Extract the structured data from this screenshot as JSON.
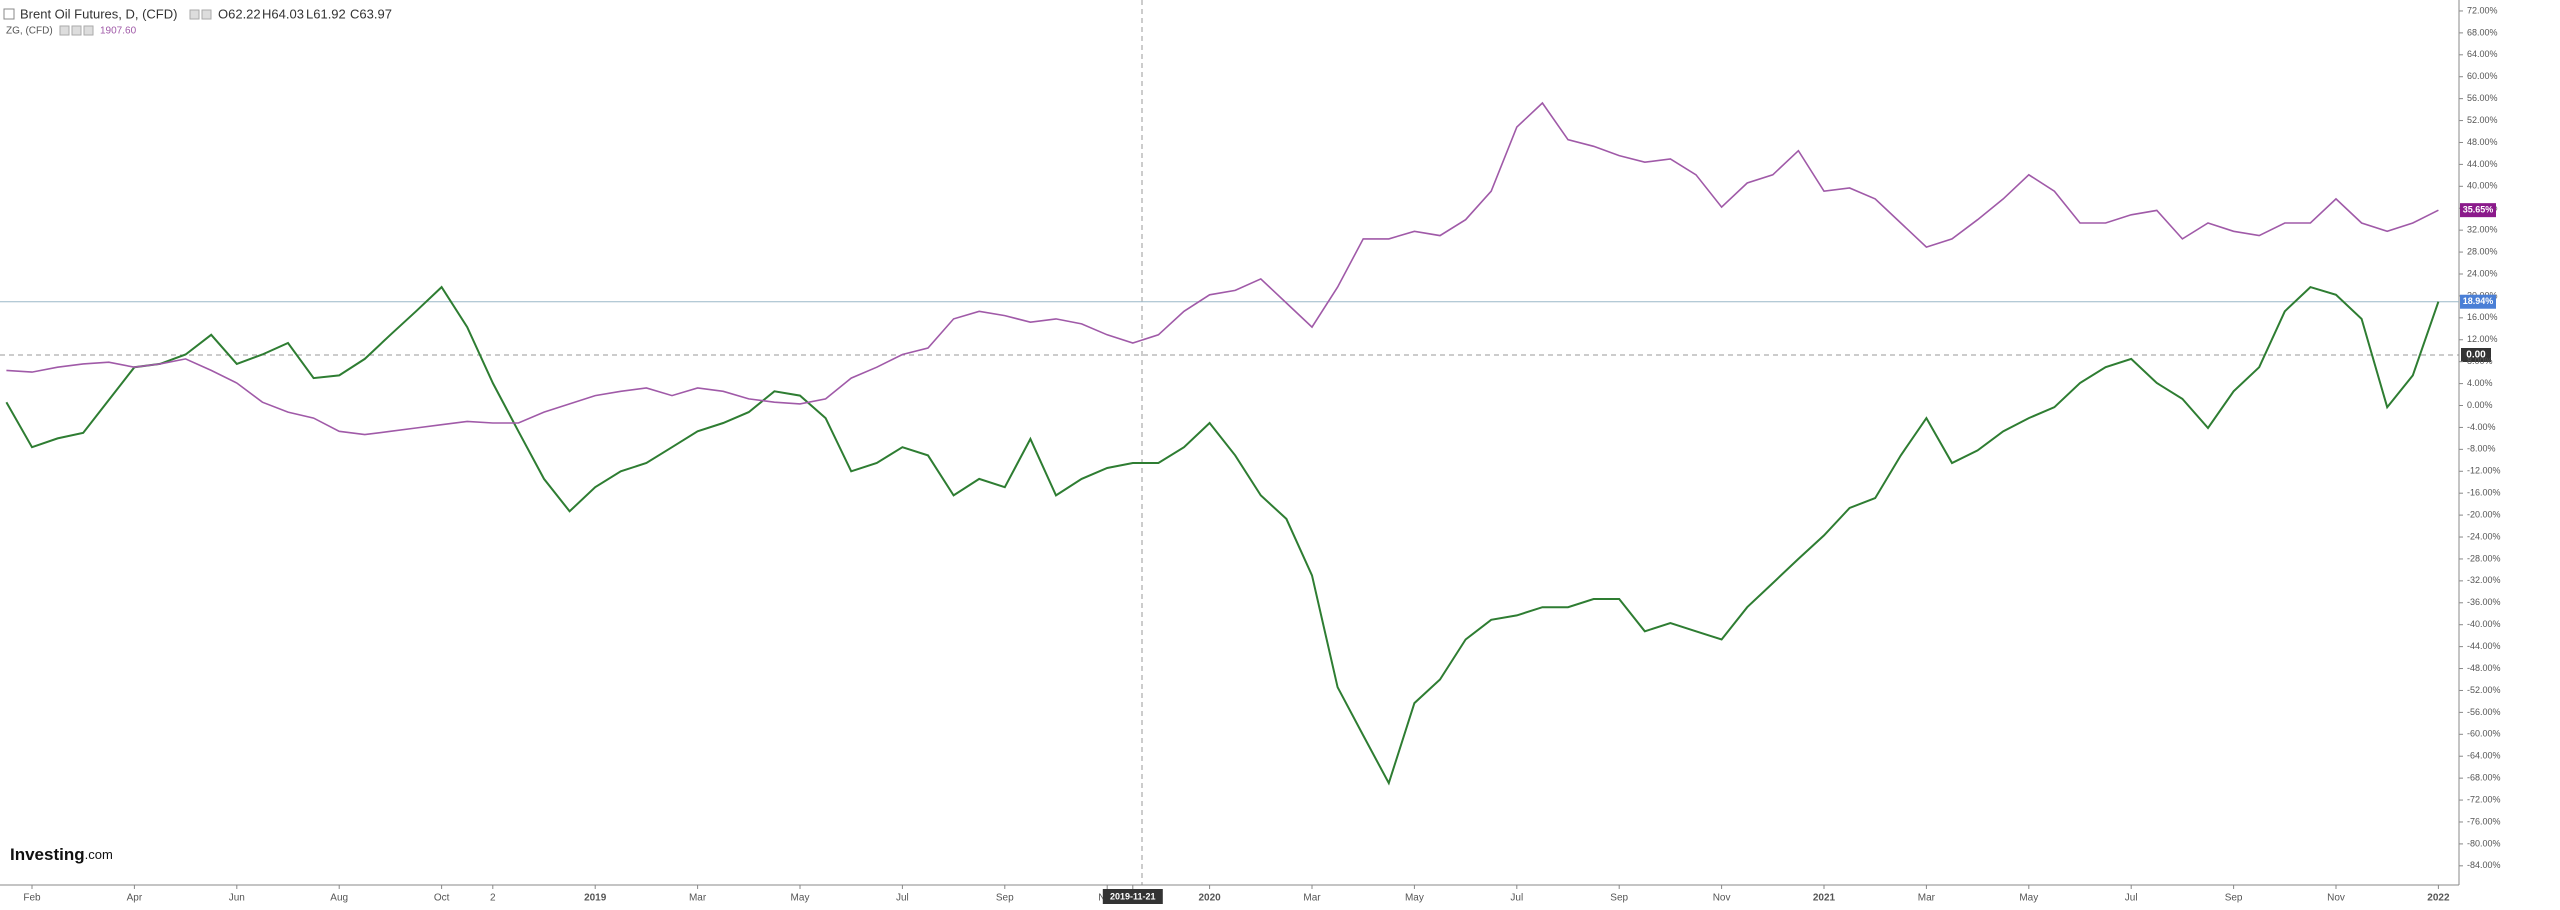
{
  "chart_data": {
    "type": "line",
    "categories": [
      null,
      "Feb",
      null,
      null,
      null,
      "Apr",
      null,
      null,
      null,
      "Jun",
      null,
      null,
      null,
      "Aug",
      null,
      null,
      null,
      "Oct",
      null,
      "2",
      null,
      null,
      null,
      "2019",
      null,
      null,
      null,
      "Mar",
      null,
      null,
      null,
      "May",
      null,
      null,
      null,
      "Jul",
      null,
      null,
      null,
      "Sep",
      null,
      null,
      null,
      "Nov",
      "2019-11-21",
      null,
      null,
      "2020",
      null,
      null,
      null,
      "Mar",
      null,
      null,
      null,
      "May",
      null,
      null,
      null,
      "Jul",
      null,
      null,
      null,
      "Sep",
      null,
      null,
      null,
      "Nov",
      null,
      null,
      null,
      "2021",
      null,
      null,
      null,
      "Mar",
      null,
      null,
      null,
      "May",
      null,
      null,
      null,
      "Jul",
      null,
      null,
      null,
      "Sep",
      null,
      null,
      null,
      "Nov",
      null,
      null,
      null,
      "2022"
    ],
    "highlight_category": 44,
    "series": [
      {
        "name": "Brent Oil Futures, D, (CFD)",
        "color": "#2e7d32",
        "ohlc": [
          "O62.22",
          "H64.03",
          "L61.92",
          "C63.97"
        ],
        "values": [
          0.6,
          -7.6,
          -6,
          -5,
          1,
          7,
          7.6,
          9.3,
          12.9,
          7.6,
          9.3,
          11.4,
          5,
          5.5,
          8.5,
          12.9,
          17.2,
          21.6,
          14.3,
          4.1,
          -4.7,
          -13.4,
          -19.3,
          -14.9,
          -12,
          -10.5,
          -7.6,
          -4.7,
          -3.2,
          -1.2,
          2.6,
          1.8,
          -2.3,
          -12,
          -10.5,
          -7.6,
          -9.1,
          -16.4,
          -13.4,
          -14.9,
          -6.1,
          -16.4,
          -13.4,
          -11.4,
          -10.5,
          -10.5,
          -7.6,
          -3.2,
          -9.1,
          -16.4,
          -20.7,
          -31,
          -51.4,
          -60.2,
          -68.9,
          -54.3,
          -50,
          -42.7,
          -39.1,
          -38.3,
          -36.8,
          -36.8,
          -35.3,
          -35.3,
          -41.2,
          -39.7,
          -41.2,
          -42.7,
          -36.8,
          -32.4,
          -28,
          -23.7,
          -18.7,
          -16.9,
          -9.1,
          -2.3,
          -10.5,
          -8.2,
          -4.7,
          -2.3,
          -0.3,
          4.1,
          7,
          8.5,
          4.1,
          1.2,
          -4.1,
          2.6,
          7,
          17.2,
          21.6,
          20.2,
          15.8,
          -0.3,
          5.5,
          18.94
        ],
        "last_label": {
          "value": 18.94,
          "label": "18.94%"
        },
        "label_color": "#4a7fd6"
      },
      {
        "name": "ZG, (CFD)",
        "color": "#a05aa8",
        "price": "1907.60",
        "values": [
          6.4,
          6.1,
          7,
          7.6,
          7.9,
          7,
          7.6,
          8.5,
          6.4,
          4.1,
          0.6,
          -1.2,
          -2.3,
          -4.7,
          -5.3,
          -4.7,
          -4.1,
          -3.5,
          -2.9,
          -3.2,
          -3.2,
          -1.2,
          0.3,
          1.8,
          2.6,
          3.2,
          1.8,
          3.2,
          2.6,
          1.2,
          0.6,
          0.3,
          1.2,
          5,
          7,
          9.3,
          10.5,
          15.8,
          17.2,
          16.4,
          15.2,
          15.8,
          14.9,
          12.9,
          11.4,
          12.9,
          17.2,
          20.2,
          21,
          23.1,
          18.7,
          14.3,
          21.6,
          30.4,
          30.4,
          31.8,
          31,
          33.9,
          39.1,
          50.8,
          55.2,
          48.5,
          47.3,
          45.6,
          44.4,
          45,
          42.1,
          36.2,
          40.6,
          42.1,
          46.5,
          39.1,
          39.7,
          37.7,
          33.3,
          28.9,
          30.4,
          33.9,
          37.7,
          42.1,
          39.1,
          33.3,
          33.3,
          34.8,
          35.6,
          30.4,
          33.3,
          31.8,
          31,
          33.3,
          33.3,
          37.7,
          33.3,
          31.8,
          33.3,
          35.65
        ],
        "last_label": {
          "value": 35.65,
          "label": "35.65%"
        },
        "label_color": "#8b1a8b"
      }
    ],
    "crosshair_label": "0.00",
    "logo": [
      "Investing",
      ".com"
    ],
    "ylim": [
      -87.5,
      74
    ],
    "yticks": [
      {
        "value": 72,
        "label": "72.00%"
      },
      {
        "value": 68,
        "label": "68.00%"
      },
      {
        "value": 64,
        "label": "64.00%"
      },
      {
        "value": 60,
        "label": "60.00%"
      },
      {
        "value": 56,
        "label": "56.00%"
      },
      {
        "value": 52,
        "label": "52.00%"
      },
      {
        "value": 48,
        "label": "48.00%"
      },
      {
        "value": 44,
        "label": "44.00%"
      },
      {
        "value": 40,
        "label": "40.00%"
      },
      {
        "value": 36,
        "label": "36.00%"
      },
      {
        "value": 32,
        "label": "32.00%"
      },
      {
        "value": 28,
        "label": "28.00%"
      },
      {
        "value": 24,
        "label": "24.00%"
      },
      {
        "value": 20,
        "label": "20.00%"
      },
      {
        "value": 16,
        "label": "16.00%"
      },
      {
        "value": 12,
        "label": "12.00%"
      },
      {
        "value": 8,
        "label": "8.00%"
      },
      {
        "value": 4,
        "label": "4.00%"
      },
      {
        "value": 0,
        "label": "0.00%"
      },
      {
        "value": -4,
        "label": "-4.00%"
      },
      {
        "value": -8,
        "label": "-8.00%"
      },
      {
        "value": -12,
        "label": "-12.00%"
      },
      {
        "value": -16,
        "label": "-16.00%"
      },
      {
        "value": -20,
        "label": "-20.00%"
      },
      {
        "value": -24,
        "label": "-24.00%"
      },
      {
        "value": -28,
        "label": "-28.00%"
      },
      {
        "value": -32,
        "label": "-32.00%"
      },
      {
        "value": -36,
        "label": "-36.00%"
      },
      {
        "value": -40,
        "label": "-40.00%"
      },
      {
        "value": -44,
        "label": "-44.00%"
      },
      {
        "value": -48,
        "label": "-48.00%"
      },
      {
        "value": -52,
        "label": "-52.00%"
      },
      {
        "value": -56,
        "label": "-56.00%"
      },
      {
        "value": -60,
        "label": "-60.00%"
      },
      {
        "value": -64,
        "label": "-64.00%"
      },
      {
        "value": -68,
        "label": "-68.00%"
      },
      {
        "value": -72,
        "label": "-72.00%"
      },
      {
        "value": -76,
        "label": "-76.00%"
      },
      {
        "value": -80,
        "label": "-80.00%"
      },
      {
        "value": -84,
        "label": "-84.00%"
      }
    ],
    "grid": false
  }
}
